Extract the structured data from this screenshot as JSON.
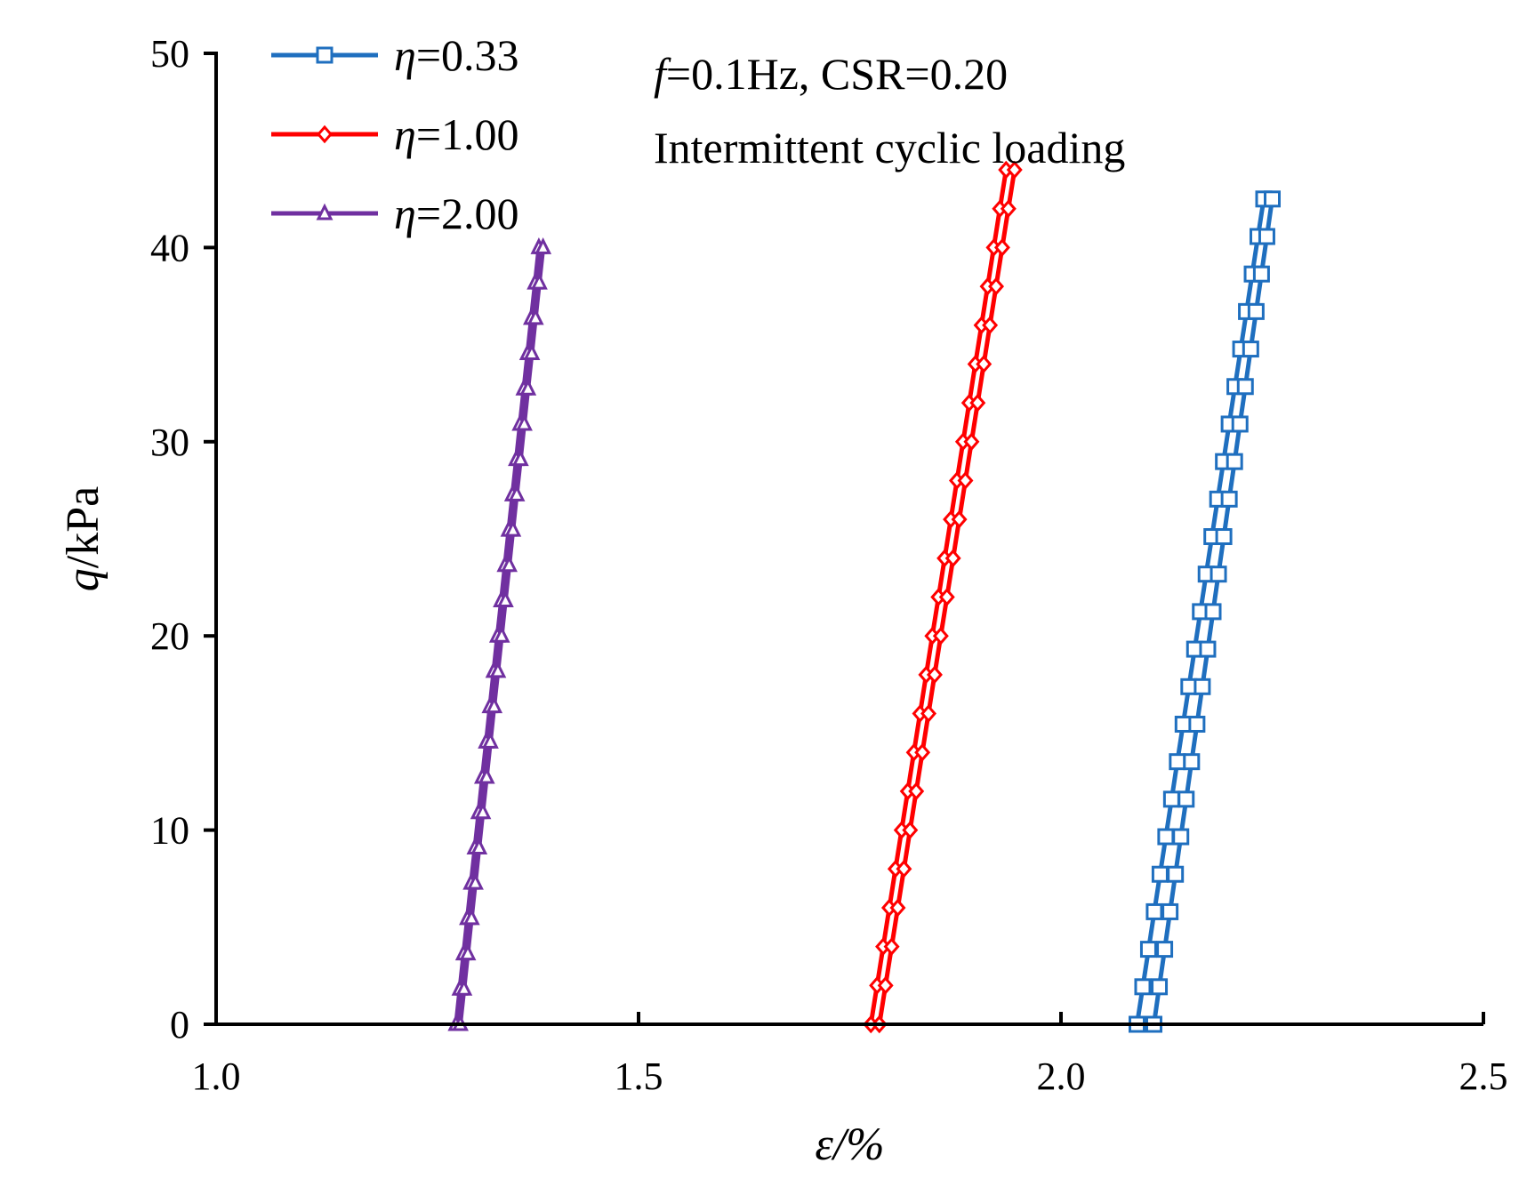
{
  "chart_data": {
    "type": "line",
    "title": "",
    "annotations": [
      "f=0.1Hz, CSR=0.20",
      "Intermittent cyclic loading"
    ],
    "annotation_parts": {
      "f_symbol": "f",
      "f_rest": "=0.1Hz, CSR=0.20",
      "line2": "Intermittent cyclic loading"
    },
    "xlabel": "ε/%",
    "ylabel": "q/kPa",
    "ylabel_parts": {
      "symbol": "q",
      "rest": "/kPa"
    },
    "xlim": [
      1.0,
      2.5
    ],
    "ylim": [
      0,
      50
    ],
    "x_ticks": [
      "1.0",
      "1.5",
      "2.0",
      "2.5"
    ],
    "y_ticks": [
      "0",
      "10",
      "20",
      "30",
      "40",
      "50"
    ],
    "legend_position": "top-left",
    "series": [
      {
        "name": "η=0.33",
        "symbol": "η",
        "value_text": "=0.33",
        "color": "#1f6fbf",
        "marker": "square",
        "loading_x_start": 2.09,
        "loading_x_end": 2.24,
        "unloading_x_start": 2.11,
        "unloading_x_end": 2.25,
        "q_max": 42.5
      },
      {
        "name": "η=1.00",
        "symbol": "η",
        "value_text": "=1.00",
        "color": "#ff0000",
        "marker": "diamond",
        "loading_x_start": 1.775,
        "loading_x_end": 1.935,
        "unloading_x_start": 1.785,
        "unloading_x_end": 1.945,
        "q_max": 44.0
      },
      {
        "name": "η=2.00",
        "symbol": "η",
        "value_text": "=2.00",
        "color": "#7030a0",
        "marker": "triangle",
        "loading_x_start": 1.284,
        "loading_x_end": 1.382,
        "unloading_x_start": 1.289,
        "unloading_x_end": 1.387,
        "q_max": 40.0
      }
    ]
  }
}
